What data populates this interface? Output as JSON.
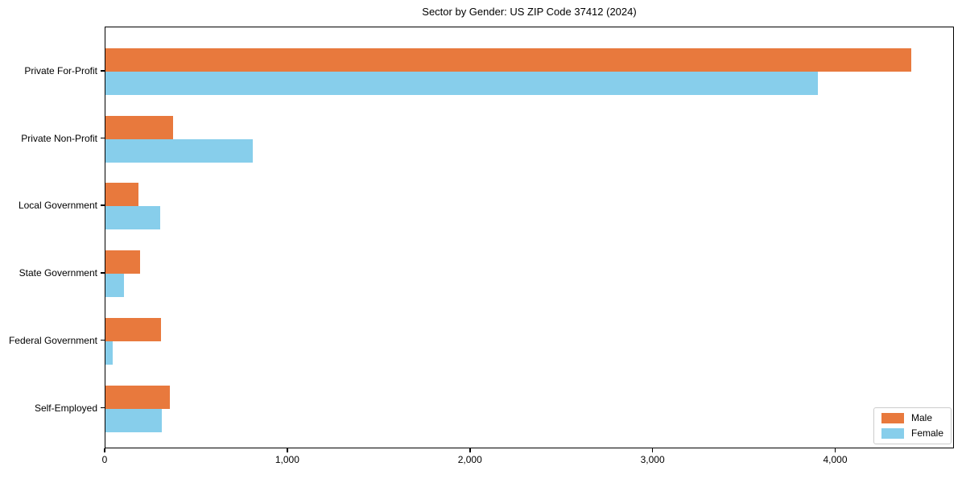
{
  "chart_data": {
    "type": "bar",
    "orientation": "horizontal",
    "title": "Sector by Gender: US ZIP Code 37412 (2024)",
    "categories": [
      "Private For-Profit",
      "Private Non-Profit",
      "Local Government",
      "State Government",
      "Federal Government",
      "Self-Employed"
    ],
    "series": [
      {
        "name": "Male",
        "color": "#e8793d",
        "values": [
          4420,
          370,
          180,
          190,
          305,
          355
        ]
      },
      {
        "name": "Female",
        "color": "#87ceeb",
        "values": [
          3910,
          810,
          300,
          100,
          40,
          310
        ]
      }
    ],
    "xlabel": "",
    "ylabel": "",
    "xlim": [
      0,
      4650
    ],
    "x_ticks": [
      0,
      1000,
      2000,
      3000,
      4000
    ],
    "x_tick_labels": [
      "0",
      "1,000",
      "2,000",
      "3,000",
      "4,000"
    ],
    "grid": false,
    "legend_position": "lower-right",
    "colors": {
      "male": "#e8793d",
      "female": "#87ceeb",
      "spine": "#000000",
      "background": "#ffffff"
    }
  }
}
